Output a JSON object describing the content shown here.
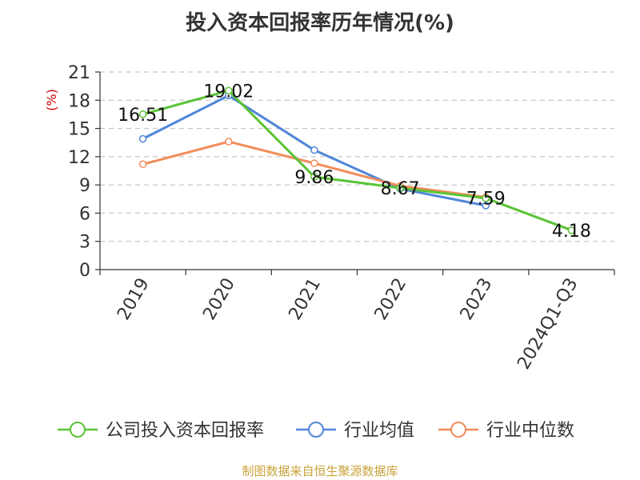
{
  "title": "投入资本回报率历年情况(%)",
  "source": "制图数据来自恒生聚源数据库",
  "chart_data": {
    "type": "line",
    "title": "投入资本回报率历年情况(%)",
    "ylabel": "(%)",
    "categories": [
      "2019",
      "2020",
      "2021",
      "2022",
      "2023",
      "2024Q1-Q3"
    ],
    "ylim": [
      0,
      21
    ],
    "yticks": [
      0,
      3,
      6,
      9,
      12,
      15,
      18,
      21
    ],
    "grid": true,
    "legend_position": "bottom",
    "series": [
      {
        "name": "公司投入资本回报率",
        "color": "#5ac336",
        "values": [
          16.51,
          19.02,
          9.86,
          8.67,
          7.59,
          4.18
        ],
        "show_labels": true,
        "labels": [
          "16.51",
          "19.02",
          "9.86",
          "8.67",
          "7.59",
          "4.18"
        ]
      },
      {
        "name": "行业均值",
        "color": "#4f86d9",
        "values": [
          13.9,
          18.5,
          12.7,
          8.6,
          6.8,
          null
        ],
        "show_labels": false
      },
      {
        "name": "行业中位数",
        "color": "#f28c5a",
        "values": [
          11.2,
          13.6,
          11.3,
          8.9,
          7.7,
          null
        ],
        "show_labels": false
      }
    ]
  }
}
